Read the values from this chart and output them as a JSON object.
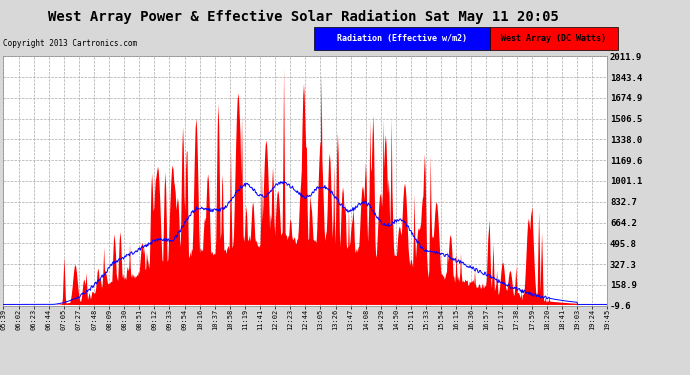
{
  "title": "West Array Power & Effective Solar Radiation Sat May 11 20:05",
  "copyright": "Copyright 2013 Cartronics.com",
  "yticks": [
    2011.9,
    1843.4,
    1674.9,
    1506.5,
    1338.0,
    1169.6,
    1001.1,
    832.7,
    664.2,
    495.8,
    327.3,
    158.9,
    -9.6
  ],
  "ymin": -9.6,
  "ymax": 2011.9,
  "background_color": "#d8d8d8",
  "plot_bg_color": "#ffffff",
  "grid_color": "#aaaaaa",
  "red_fill_color": "#ff0000",
  "blue_line_color": "#0000ff",
  "title_fontsize": 10,
  "legend_radiation_label": "Radiation (Effective w/m2)",
  "legend_west_label": "West Array (DC Watts)",
  "xtick_labels": [
    "05:39",
    "06:02",
    "06:23",
    "06:44",
    "07:05",
    "07:27",
    "07:48",
    "08:09",
    "08:30",
    "08:51",
    "09:12",
    "09:33",
    "09:54",
    "10:16",
    "10:37",
    "10:58",
    "11:19",
    "11:41",
    "12:02",
    "12:23",
    "12:44",
    "13:05",
    "13:26",
    "13:47",
    "14:08",
    "14:29",
    "14:50",
    "15:11",
    "15:33",
    "15:54",
    "16:15",
    "16:36",
    "16:57",
    "17:17",
    "17:38",
    "17:59",
    "18:20",
    "18:41",
    "19:03",
    "19:24",
    "19:45"
  ]
}
